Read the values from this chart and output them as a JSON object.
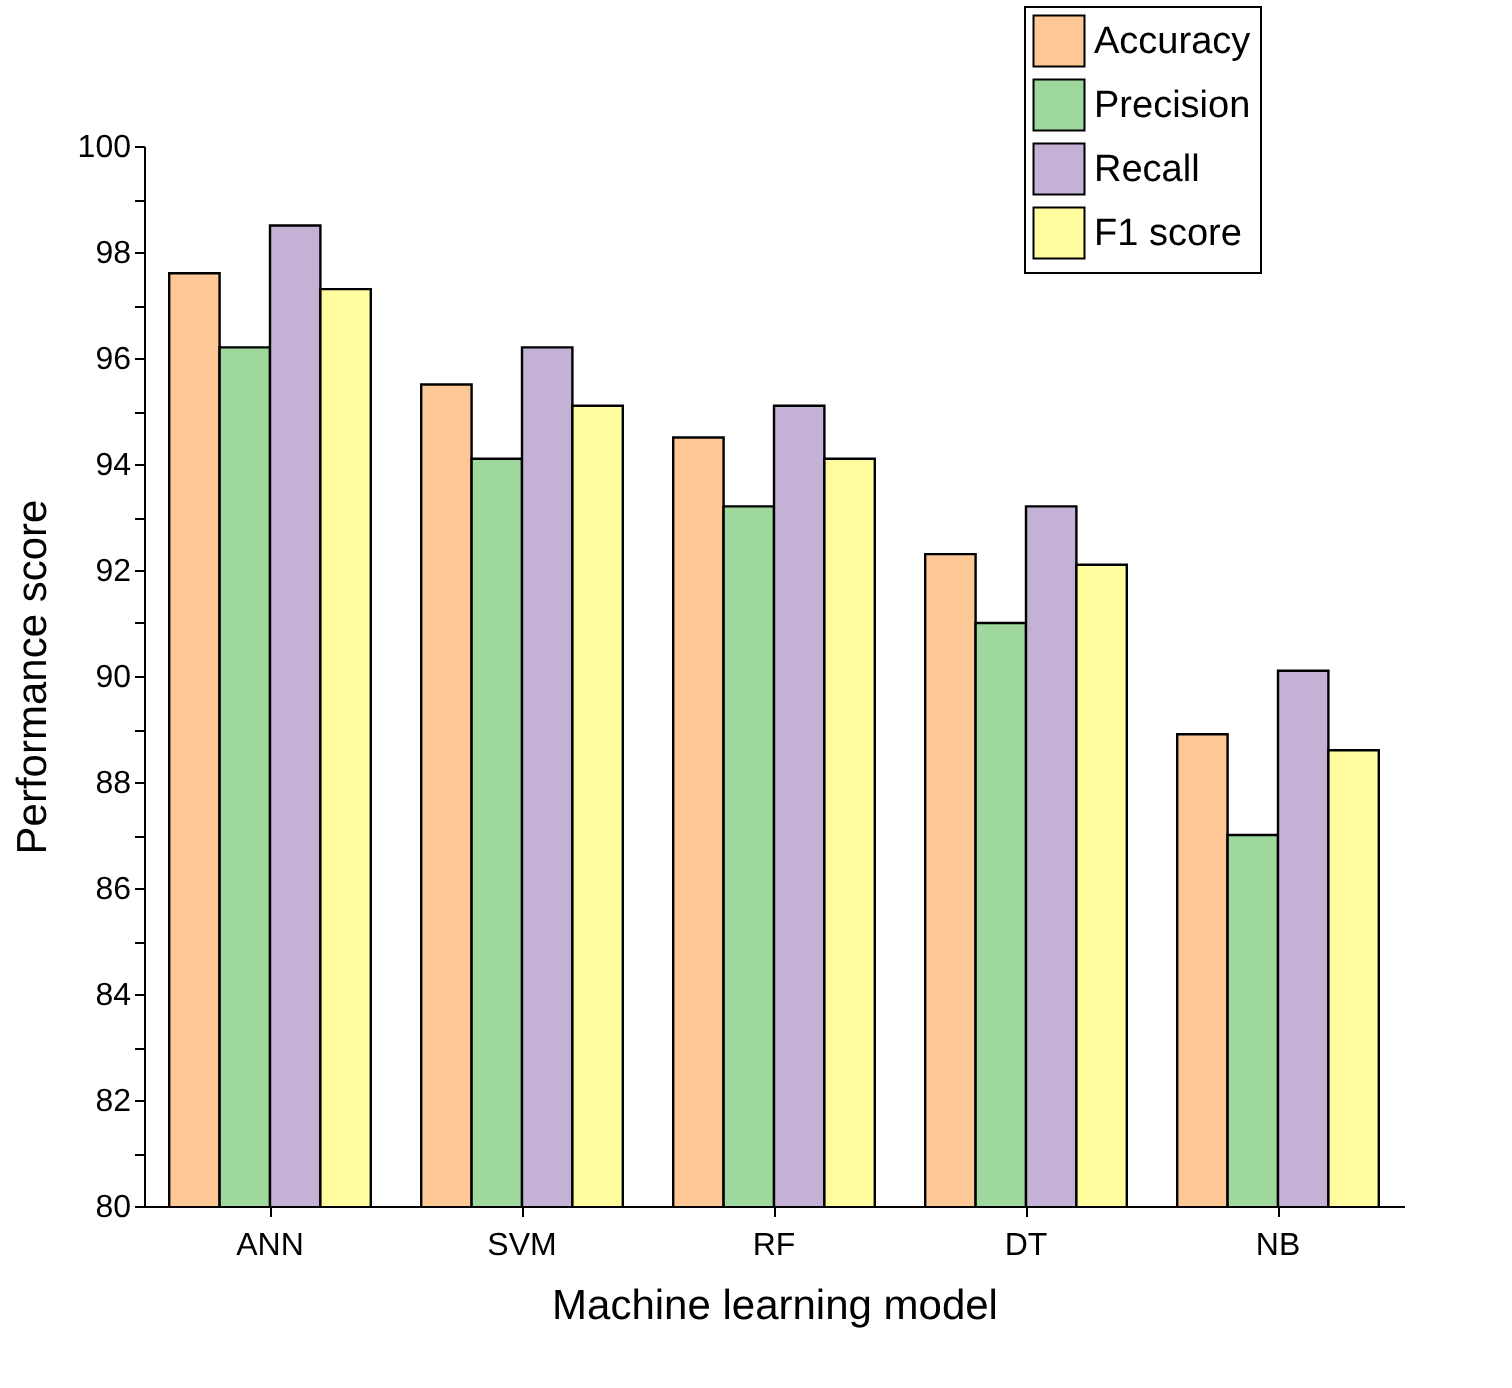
{
  "chart_data": {
    "type": "bar",
    "xlabel": "Machine learning model",
    "ylabel": "Performance score",
    "categories": [
      "ANN",
      "SVM",
      "RF",
      "DT",
      "NB"
    ],
    "series": [
      {
        "name": "Accuracy",
        "color": "#fdc895",
        "values": [
          97.6,
          95.5,
          94.5,
          92.3,
          88.9
        ]
      },
      {
        "name": "Precision",
        "color": "#9fd89d",
        "values": [
          96.2,
          94.1,
          93.2,
          91.0,
          87.0
        ]
      },
      {
        "name": "Recall",
        "color": "#c3b2d6",
        "values": [
          98.5,
          96.2,
          95.1,
          93.2,
          90.1
        ]
      },
      {
        "name": "F1 score",
        "color": "#fffd9d",
        "values": [
          97.3,
          95.1,
          94.1,
          92.1,
          88.6
        ]
      }
    ],
    "ylim": [
      80,
      100
    ],
    "yticks": [
      80,
      {
        "value": 81,
        "label": null
      },
      82,
      {
        "value": 83,
        "label": null
      },
      84,
      {
        "value": 85,
        "label": null
      },
      86,
      {
        "value": 87,
        "label": null
      },
      88,
      {
        "value": 89,
        "label": null
      },
      90,
      {
        "value": 91,
        "label": null
      },
      92,
      {
        "value": 93,
        "label": null
      },
      94,
      {
        "value": 95,
        "label": null
      },
      96,
      {
        "value": 97,
        "label": null
      },
      98,
      {
        "value": 99,
        "label": null
      },
      100
    ],
    "grid": false,
    "legend": "top right"
  }
}
